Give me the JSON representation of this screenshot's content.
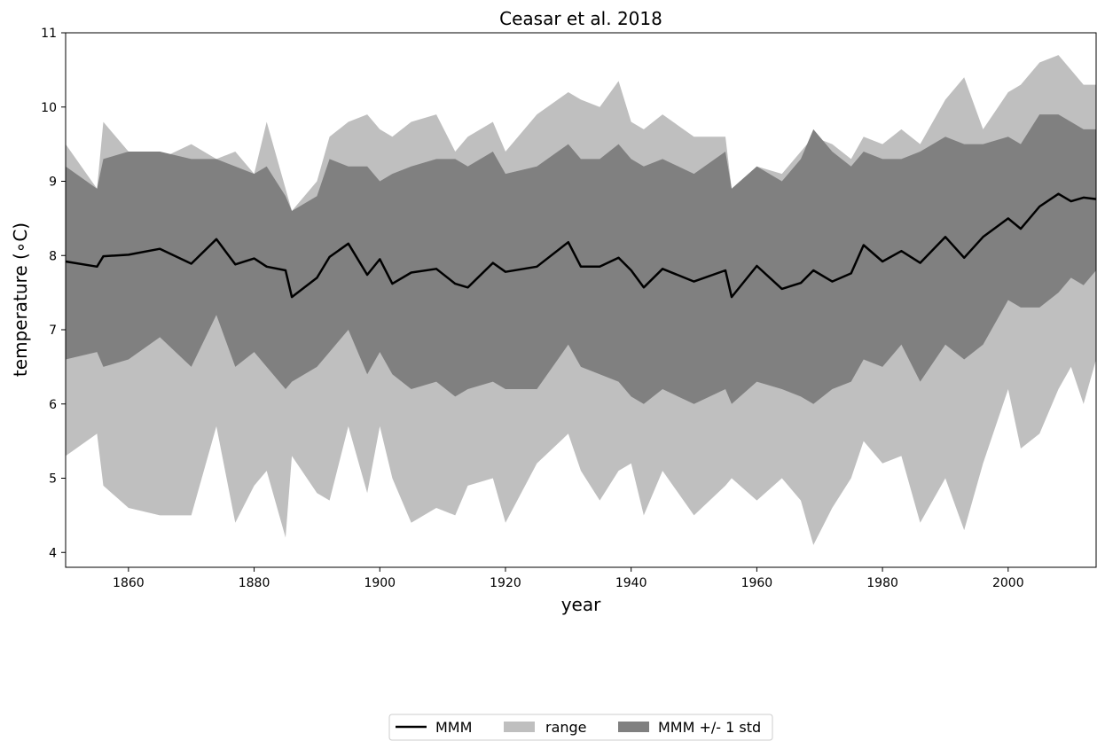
{
  "chart_data": {
    "type": "area",
    "title": "Ceasar et al. 2018",
    "xlabel": "year",
    "ylabel": "temperature (∘C)",
    "xlim": [
      1850,
      2014
    ],
    "ylim": [
      3.8,
      11
    ],
    "xticks": [
      "1860",
      "1880",
      "1900",
      "1920",
      "1940",
      "1960",
      "1980",
      "2000"
    ],
    "yticks": [
      "4",
      "5",
      "6",
      "7",
      "8",
      "9",
      "10",
      "11"
    ],
    "grid": false,
    "legend_position": "bottom-center",
    "x": [
      1850,
      1855,
      1856,
      1860,
      1865,
      1870,
      1874,
      1877,
      1880,
      1882,
      1885,
      1886,
      1890,
      1892,
      1895,
      1898,
      1900,
      1902,
      1905,
      1909,
      1912,
      1914,
      1918,
      1920,
      1925,
      1930,
      1932,
      1935,
      1938,
      1940,
      1942,
      1945,
      1950,
      1955,
      1956,
      1960,
      1964,
      1967,
      1969,
      1972,
      1975,
      1977,
      1980,
      1983,
      1986,
      1990,
      1993,
      1996,
      2000,
      2002,
      2005,
      2008,
      2010,
      2012,
      2014
    ],
    "series": [
      {
        "name": "MMM",
        "color": "#000000",
        "values": [
          7.92,
          7.85,
          7.99,
          8.01,
          8.09,
          7.89,
          8.22,
          7.88,
          7.96,
          7.85,
          7.8,
          7.44,
          7.7,
          7.98,
          8.16,
          7.74,
          7.95,
          7.62,
          7.77,
          7.82,
          7.62,
          7.57,
          7.9,
          7.78,
          7.85,
          8.18,
          7.85,
          7.85,
          7.97,
          7.8,
          7.57,
          7.82,
          7.65,
          7.8,
          7.44,
          7.86,
          7.55,
          7.63,
          7.8,
          7.65,
          7.76,
          8.14,
          7.92,
          8.06,
          7.9,
          8.25,
          7.97,
          8.25,
          8.5,
          8.36,
          8.66,
          8.83,
          8.73,
          8.78,
          8.76
        ]
      },
      {
        "name": "range",
        "color": "#bfbfbf",
        "upper": [
          9.5,
          8.9,
          9.8,
          9.4,
          9.3,
          9.5,
          9.3,
          9.4,
          9.1,
          9.8,
          8.9,
          8.6,
          9.0,
          9.6,
          9.8,
          9.9,
          9.7,
          9.6,
          9.8,
          9.9,
          9.4,
          9.6,
          9.8,
          9.4,
          9.9,
          10.2,
          10.1,
          10.0,
          10.35,
          9.8,
          9.7,
          9.9,
          9.6,
          9.6,
          8.9,
          9.2,
          9.1,
          9.4,
          9.6,
          9.5,
          9.3,
          9.6,
          9.5,
          9.7,
          9.5,
          10.1,
          10.4,
          9.7,
          10.2,
          10.3,
          10.6,
          10.7,
          10.5,
          10.3,
          10.3
        ],
        "lower": [
          5.3,
          5.6,
          4.9,
          4.6,
          4.5,
          4.5,
          5.7,
          4.4,
          4.9,
          5.1,
          4.2,
          5.3,
          4.8,
          4.7,
          5.7,
          4.8,
          5.7,
          5.0,
          4.4,
          4.6,
          4.5,
          4.9,
          5.0,
          4.4,
          5.2,
          5.6,
          5.1,
          4.7,
          5.1,
          5.2,
          4.5,
          5.1,
          4.5,
          4.9,
          5.0,
          4.7,
          5.0,
          4.7,
          4.1,
          4.6,
          5.0,
          5.5,
          5.2,
          5.3,
          4.4,
          5.0,
          4.3,
          5.2,
          6.2,
          5.4,
          5.6,
          6.2,
          6.5,
          6.0,
          6.6
        ]
      },
      {
        "name": "MMM +/- 1 std",
        "color": "#808080",
        "upper": [
          9.2,
          8.9,
          9.3,
          9.4,
          9.4,
          9.3,
          9.3,
          9.2,
          9.1,
          9.2,
          8.8,
          8.6,
          8.8,
          9.3,
          9.2,
          9.2,
          9.0,
          9.1,
          9.2,
          9.3,
          9.3,
          9.2,
          9.4,
          9.1,
          9.2,
          9.5,
          9.3,
          9.3,
          9.5,
          9.3,
          9.2,
          9.3,
          9.1,
          9.4,
          8.9,
          9.2,
          9.0,
          9.3,
          9.7,
          9.4,
          9.2,
          9.4,
          9.3,
          9.3,
          9.4,
          9.6,
          9.5,
          9.5,
          9.6,
          9.5,
          9.9,
          9.9,
          9.8,
          9.7,
          9.7
        ],
        "lower": [
          6.6,
          6.7,
          6.5,
          6.6,
          6.9,
          6.5,
          7.2,
          6.5,
          6.7,
          6.5,
          6.2,
          6.3,
          6.5,
          6.7,
          7.0,
          6.4,
          6.7,
          6.4,
          6.2,
          6.3,
          6.1,
          6.2,
          6.3,
          6.2,
          6.2,
          6.8,
          6.5,
          6.4,
          6.3,
          6.1,
          6.0,
          6.2,
          6.0,
          6.2,
          6.0,
          6.3,
          6.2,
          6.1,
          6.0,
          6.2,
          6.3,
          6.6,
          6.5,
          6.8,
          6.3,
          6.8,
          6.6,
          6.8,
          7.4,
          7.3,
          7.3,
          7.5,
          7.7,
          7.6,
          7.8
        ]
      }
    ]
  }
}
